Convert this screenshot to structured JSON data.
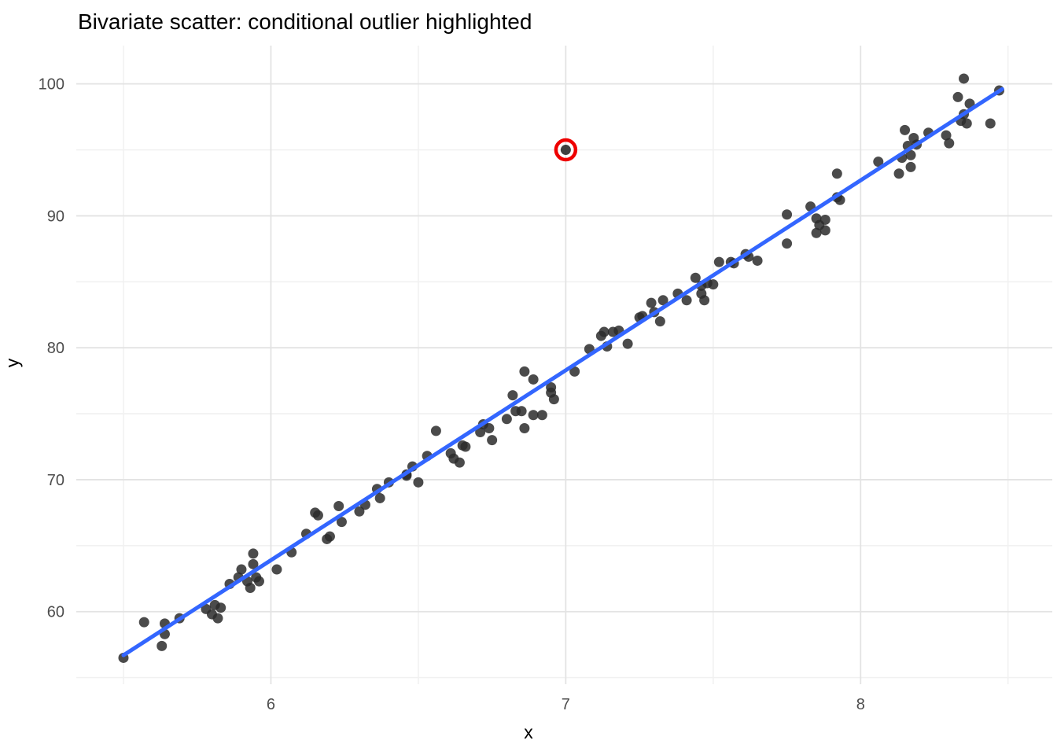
{
  "title": "Bivariate scatter: conditional outlier highlighted",
  "colors": {
    "background": "#ffffff",
    "grid_major": "#e3e3e3",
    "grid_minor": "#f1f1f1",
    "point": "#2b2b2b",
    "fit_line": "#3366ff",
    "outlier_ring": "#ee0000",
    "tick_text": "#4d4d4d",
    "title_text": "#000000"
  },
  "chart_data": {
    "type": "scatter",
    "title": "Bivariate scatter: conditional outlier highlighted",
    "xlabel": "x",
    "ylabel": "y",
    "xlim": [
      5.34,
      8.65
    ],
    "ylim": [
      54.5,
      102.9
    ],
    "x_ticks": [
      6,
      7,
      8
    ],
    "y_ticks": [
      60,
      70,
      80,
      90,
      100
    ],
    "x_minor_ticks": [
      5.5,
      6.5,
      7.5,
      8.5
    ],
    "y_minor_ticks": [
      55,
      65,
      75,
      85,
      95
    ],
    "grid": true,
    "legend_position": "none",
    "series": [
      {
        "name": "observations",
        "type": "points",
        "color": "#2b2b2b",
        "points": [
          [
            5.5,
            56.5
          ],
          [
            5.57,
            59.2
          ],
          [
            5.63,
            57.4
          ],
          [
            5.64,
            59.1
          ],
          [
            5.64,
            58.3
          ],
          [
            5.69,
            59.5
          ],
          [
            5.78,
            60.2
          ],
          [
            5.8,
            59.8
          ],
          [
            5.81,
            60.5
          ],
          [
            5.82,
            59.5
          ],
          [
            5.83,
            60.3
          ],
          [
            5.86,
            62.1
          ],
          [
            5.89,
            62.6
          ],
          [
            5.9,
            63.2
          ],
          [
            5.92,
            62.3
          ],
          [
            5.93,
            61.8
          ],
          [
            5.94,
            63.6
          ],
          [
            5.94,
            64.4
          ],
          [
            5.95,
            62.6
          ],
          [
            5.96,
            62.3
          ],
          [
            6.02,
            63.2
          ],
          [
            6.07,
            64.5
          ],
          [
            6.12,
            65.9
          ],
          [
            6.15,
            67.5
          ],
          [
            6.16,
            67.3
          ],
          [
            6.19,
            65.5
          ],
          [
            6.2,
            65.7
          ],
          [
            6.23,
            68.0
          ],
          [
            6.24,
            66.8
          ],
          [
            6.3,
            67.6
          ],
          [
            6.32,
            68.1
          ],
          [
            6.36,
            69.3
          ],
          [
            6.37,
            68.6
          ],
          [
            6.4,
            69.8
          ],
          [
            6.46,
            70.3
          ],
          [
            6.46,
            70.4
          ],
          [
            6.48,
            71.0
          ],
          [
            6.5,
            69.8
          ],
          [
            6.53,
            71.8
          ],
          [
            6.56,
            73.7
          ],
          [
            6.61,
            72.0
          ],
          [
            6.62,
            71.6
          ],
          [
            6.64,
            71.3
          ],
          [
            6.65,
            72.6
          ],
          [
            6.66,
            72.5
          ],
          [
            6.71,
            73.6
          ],
          [
            6.72,
            74.2
          ],
          [
            6.74,
            73.9
          ],
          [
            6.75,
            73.0
          ],
          [
            6.8,
            74.6
          ],
          [
            6.86,
            73.9
          ],
          [
            6.82,
            76.4
          ],
          [
            6.83,
            75.2
          ],
          [
            6.85,
            75.2
          ],
          [
            6.86,
            78.2
          ],
          [
            6.89,
            77.6
          ],
          [
            6.89,
            74.9
          ],
          [
            6.92,
            74.9
          ],
          [
            6.95,
            77.0
          ],
          [
            6.95,
            76.6
          ],
          [
            6.96,
            76.1
          ],
          [
            7.03,
            78.2
          ],
          [
            7.08,
            79.9
          ],
          [
            7.12,
            80.9
          ],
          [
            7.13,
            81.2
          ],
          [
            7.14,
            80.1
          ],
          [
            7.16,
            81.2
          ],
          [
            7.18,
            81.3
          ],
          [
            7.21,
            80.3
          ],
          [
            7.25,
            82.3
          ],
          [
            7.26,
            82.4
          ],
          [
            7.29,
            83.4
          ],
          [
            7.3,
            82.7
          ],
          [
            7.32,
            82.0
          ],
          [
            7.33,
            83.6
          ],
          [
            7.38,
            84.1
          ],
          [
            7.41,
            83.6
          ],
          [
            7.44,
            85.3
          ],
          [
            7.46,
            84.7
          ],
          [
            7.46,
            84.1
          ],
          [
            7.47,
            83.6
          ],
          [
            7.48,
            84.9
          ],
          [
            7.5,
            84.8
          ],
          [
            7.52,
            86.5
          ],
          [
            7.56,
            86.5
          ],
          [
            7.57,
            86.4
          ],
          [
            7.61,
            87.1
          ],
          [
            7.62,
            86.9
          ],
          [
            7.65,
            86.6
          ],
          [
            7.75,
            90.1
          ],
          [
            7.75,
            87.9
          ],
          [
            7.83,
            90.7
          ],
          [
            7.85,
            89.8
          ],
          [
            7.88,
            89.7
          ],
          [
            7.86,
            89.3
          ],
          [
            7.88,
            88.9
          ],
          [
            7.85,
            88.7
          ],
          [
            7.92,
            93.2
          ],
          [
            7.92,
            91.4
          ],
          [
            7.93,
            91.2
          ],
          [
            8.06,
            94.1
          ],
          [
            8.13,
            93.2
          ],
          [
            8.14,
            94.4
          ],
          [
            8.15,
            96.5
          ],
          [
            8.16,
            95.3
          ],
          [
            8.17,
            94.6
          ],
          [
            8.17,
            93.7
          ],
          [
            8.18,
            95.9
          ],
          [
            8.19,
            95.4
          ],
          [
            8.23,
            96.3
          ],
          [
            8.29,
            96.1
          ],
          [
            8.3,
            95.5
          ],
          [
            8.33,
            99.0
          ],
          [
            8.34,
            97.2
          ],
          [
            8.35,
            100.4
          ],
          [
            8.35,
            97.7
          ],
          [
            8.36,
            97.0
          ],
          [
            8.37,
            98.5
          ],
          [
            8.44,
            97.0
          ],
          [
            8.47,
            99.5
          ]
        ]
      },
      {
        "name": "fit-line",
        "type": "line",
        "color": "#3366ff",
        "points": [
          [
            5.5,
            56.7
          ],
          [
            8.48,
            99.6
          ]
        ]
      },
      {
        "name": "outlier",
        "type": "highlighted-point",
        "point_color": "#2b2b2b",
        "ring_color": "#ee0000",
        "points": [
          [
            7.0,
            95.0
          ]
        ]
      }
    ]
  }
}
